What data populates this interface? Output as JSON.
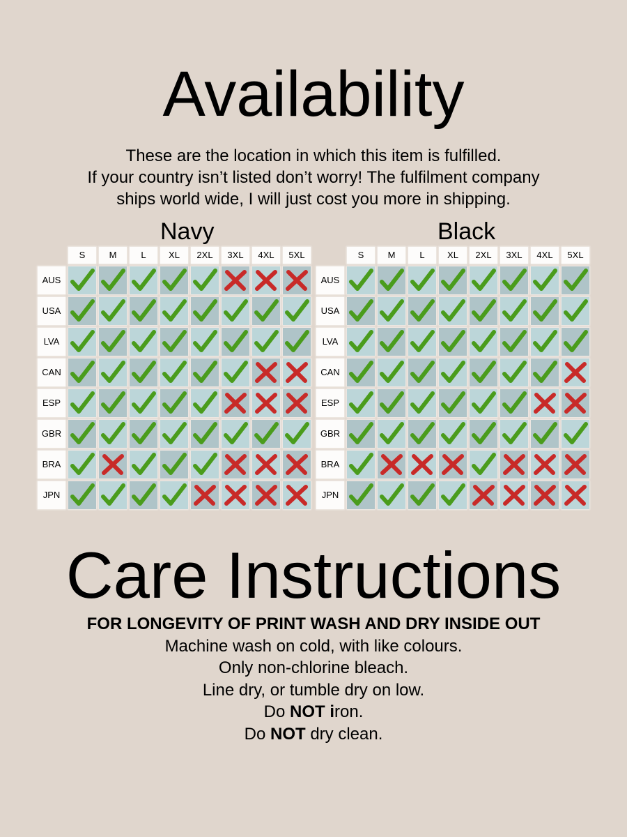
{
  "availability": {
    "title": "Availability",
    "intro": [
      "These are the location in which this item is fulfilled.",
      "If your country isn’t listed don’t worry! The fulfilment company",
      "ships world wide, I will just cost you more in shipping."
    ]
  },
  "sizes": [
    "S",
    "M",
    "L",
    "XL",
    "2XL",
    "3XL",
    "4XL",
    "5XL"
  ],
  "colors": {
    "check": "#4a9c1c",
    "cross": "#c82a28",
    "cell_light": "#bcd6d9",
    "cell_dark": "#afc4c8",
    "background": "#e0d6cd"
  },
  "icons": {
    "available": "check-icon",
    "unavailable": "cross-icon"
  },
  "grids": [
    {
      "title": "Navy",
      "rows": [
        {
          "country": "AUS",
          "available": [
            1,
            1,
            1,
            1,
            1,
            0,
            0,
            0
          ]
        },
        {
          "country": "USA",
          "available": [
            1,
            1,
            1,
            1,
            1,
            1,
            1,
            1
          ]
        },
        {
          "country": "LVA",
          "available": [
            1,
            1,
            1,
            1,
            1,
            1,
            1,
            1
          ]
        },
        {
          "country": "CAN",
          "available": [
            1,
            1,
            1,
            1,
            1,
            1,
            0,
            0
          ]
        },
        {
          "country": "ESP",
          "available": [
            1,
            1,
            1,
            1,
            1,
            0,
            0,
            0
          ]
        },
        {
          "country": "GBR",
          "available": [
            1,
            1,
            1,
            1,
            1,
            1,
            1,
            1
          ]
        },
        {
          "country": "BRA",
          "available": [
            1,
            0,
            1,
            1,
            1,
            0,
            0,
            0
          ]
        },
        {
          "country": "JPN",
          "available": [
            1,
            1,
            1,
            1,
            0,
            0,
            0,
            0
          ]
        }
      ]
    },
    {
      "title": "Black",
      "rows": [
        {
          "country": "AUS",
          "available": [
            1,
            1,
            1,
            1,
            1,
            1,
            1,
            1
          ]
        },
        {
          "country": "USA",
          "available": [
            1,
            1,
            1,
            1,
            1,
            1,
            1,
            1
          ]
        },
        {
          "country": "LVA",
          "available": [
            1,
            1,
            1,
            1,
            1,
            1,
            1,
            1
          ]
        },
        {
          "country": "CAN",
          "available": [
            1,
            1,
            1,
            1,
            1,
            1,
            1,
            0
          ]
        },
        {
          "country": "ESP",
          "available": [
            1,
            1,
            1,
            1,
            1,
            1,
            0,
            0
          ]
        },
        {
          "country": "GBR",
          "available": [
            1,
            1,
            1,
            1,
            1,
            1,
            1,
            1
          ]
        },
        {
          "country": "BRA",
          "available": [
            1,
            0,
            0,
            0,
            1,
            0,
            0,
            0
          ]
        },
        {
          "country": "JPN",
          "available": [
            1,
            1,
            1,
            1,
            0,
            0,
            0,
            0
          ]
        }
      ]
    }
  ],
  "care": {
    "title": "Care Instructions",
    "heading": "FOR LONGEVITY OF PRINT WASH AND DRY INSIDE OUT",
    "line1": "Machine wash on cold, with like colours.",
    "line2": "Only non-chlorine bleach.",
    "line3": "Line dry, or tumble dry on low.",
    "line4_prefix": "Do ",
    "line4_bold": "NOT",
    "line4_mid": " i",
    "line4_suffix": "ron.",
    "line5_prefix": "Do ",
    "line5_bold": "NOT",
    "line5_suffix": " dry clean."
  }
}
